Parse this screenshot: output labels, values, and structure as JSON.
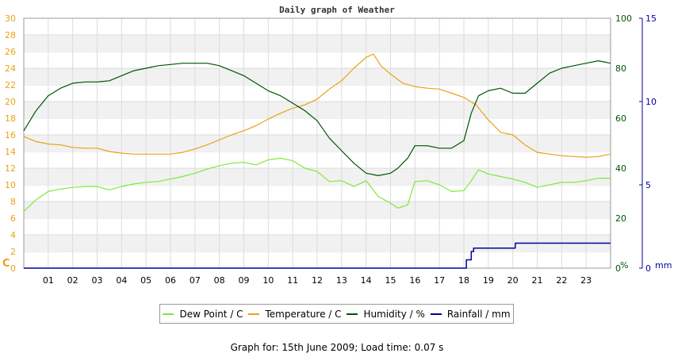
{
  "chart_data": {
    "type": "line",
    "title": "Daily graph of Weather",
    "x_ticks": [
      "01",
      "02",
      "03",
      "04",
      "05",
      "06",
      "07",
      "08",
      "09",
      "10",
      "11",
      "12",
      "13",
      "14",
      "15",
      "16",
      "17",
      "18",
      "19",
      "20",
      "21",
      "22",
      "23"
    ],
    "x_unit": "hour",
    "xlim": [
      0,
      24
    ],
    "axes": {
      "left": {
        "label": "C",
        "ylim": [
          0,
          30
        ],
        "ticks": [
          0,
          2,
          4,
          6,
          8,
          10,
          12,
          14,
          16,
          18,
          20,
          22,
          24,
          26,
          28,
          30
        ],
        "color": "#e8a317"
      },
      "right1": {
        "label": "%",
        "ylim": [
          0,
          100
        ],
        "ticks": [
          0,
          20,
          40,
          60,
          80,
          100
        ],
        "color": "#005500"
      },
      "right2": {
        "label": "mm",
        "ylim": [
          0,
          15
        ],
        "ticks": [
          0,
          5,
          10,
          15
        ],
        "color": "#000099"
      }
    },
    "series": [
      {
        "name": "Dew Point / C",
        "axis": "left",
        "color": "#7fe83b",
        "x": [
          0,
          0.5,
          1,
          1.5,
          2,
          2.5,
          3,
          3.5,
          4,
          4.5,
          5,
          5.5,
          6,
          6.5,
          7,
          7.5,
          8,
          8.5,
          9,
          9.5,
          10,
          10.5,
          11,
          11.5,
          12,
          12.5,
          13,
          13.5,
          14,
          14.5,
          15,
          15.3,
          15.7,
          16,
          16.5,
          17,
          17.5,
          18,
          18.3,
          18.6,
          19,
          19.5,
          20,
          20.5,
          21,
          21.5,
          22,
          22.5,
          23,
          23.5,
          24
        ],
        "y": [
          6.8,
          8.2,
          9.2,
          9.5,
          9.7,
          9.8,
          9.8,
          9.4,
          9.8,
          10.1,
          10.3,
          10.4,
          10.7,
          11,
          11.4,
          11.9,
          12.3,
          12.6,
          12.7,
          12.4,
          13,
          13.2,
          12.9,
          12,
          11.6,
          10.4,
          10.5,
          9.8,
          10.5,
          8.6,
          7.8,
          7.2,
          7.6,
          10.4,
          10.5,
          10,
          9.2,
          9.3,
          10.5,
          11.8,
          11.3,
          11,
          10.7,
          10.3,
          9.7,
          10,
          10.3,
          10.3,
          10.5,
          10.8,
          10.8
        ]
      },
      {
        "name": "Temperature / C",
        "axis": "left",
        "color": "#e8a317",
        "x": [
          0,
          0.5,
          1,
          1.5,
          2,
          2.5,
          3,
          3.5,
          4,
          4.5,
          5,
          5.5,
          6,
          6.5,
          7,
          7.5,
          8,
          8.5,
          9,
          9.5,
          10,
          10.5,
          11,
          11.5,
          12,
          12.5,
          13,
          13.5,
          14,
          14.3,
          14.6,
          15,
          15.5,
          16,
          16.5,
          17,
          17.5,
          18,
          18.5,
          19,
          19.5,
          20,
          20.5,
          21,
          21.5,
          22,
          22.5,
          23,
          23.5,
          24
        ],
        "y": [
          15.8,
          15.2,
          14.9,
          14.8,
          14.5,
          14.4,
          14.4,
          14,
          13.8,
          13.7,
          13.7,
          13.7,
          13.7,
          13.9,
          14.3,
          14.8,
          15.4,
          16,
          16.5,
          17.1,
          17.9,
          18.6,
          19.2,
          19.6,
          20.3,
          21.5,
          22.5,
          24,
          25.3,
          25.7,
          24.3,
          23.3,
          22.2,
          21.8,
          21.6,
          21.5,
          21,
          20.5,
          19.6,
          17.8,
          16.3,
          16,
          14.8,
          13.9,
          13.7,
          13.5,
          13.4,
          13.3,
          13.4,
          13.7
        ]
      },
      {
        "name": "Humidity / %",
        "axis": "right1",
        "color": "#005500",
        "x": [
          0,
          0.5,
          1,
          1.5,
          2,
          2.5,
          3,
          3.5,
          4,
          4.5,
          5,
          5.5,
          6,
          6.5,
          7,
          7.5,
          8,
          8.5,
          9,
          9.5,
          10,
          10.5,
          11,
          11.5,
          12,
          12.5,
          13,
          13.5,
          14,
          14.5,
          15,
          15.3,
          15.7,
          16,
          16.5,
          17,
          17.5,
          18,
          18.3,
          18.6,
          19,
          19.5,
          20,
          20.5,
          21,
          21.5,
          22,
          22.5,
          23,
          23.5,
          24
        ],
        "y": [
          55,
          63,
          69,
          72,
          74,
          74.5,
          74.5,
          75,
          77,
          79,
          80,
          81,
          81.5,
          82,
          82,
          82,
          81,
          79,
          77,
          74,
          71,
          69,
          66,
          63,
          59,
          52,
          47,
          42,
          38,
          37,
          38,
          40,
          44,
          49,
          49,
          48,
          48,
          51,
          62,
          69,
          71,
          72,
          70,
          70,
          74,
          78,
          80,
          81,
          82,
          83,
          82
        ]
      },
      {
        "name": "Rainfall / mm",
        "axis": "right2",
        "color": "#000099",
        "x": [
          0,
          17.9,
          18.1,
          18.3,
          18.4,
          19,
          20,
          20.1,
          24
        ],
        "y": [
          0,
          0,
          0.5,
          1,
          1.2,
          1.2,
          1.2,
          1.5,
          1.5
        ]
      }
    ],
    "grid": true,
    "legend": "bottom"
  },
  "footer": "Graph for: 15th June 2009; Load time: 0.07 s"
}
